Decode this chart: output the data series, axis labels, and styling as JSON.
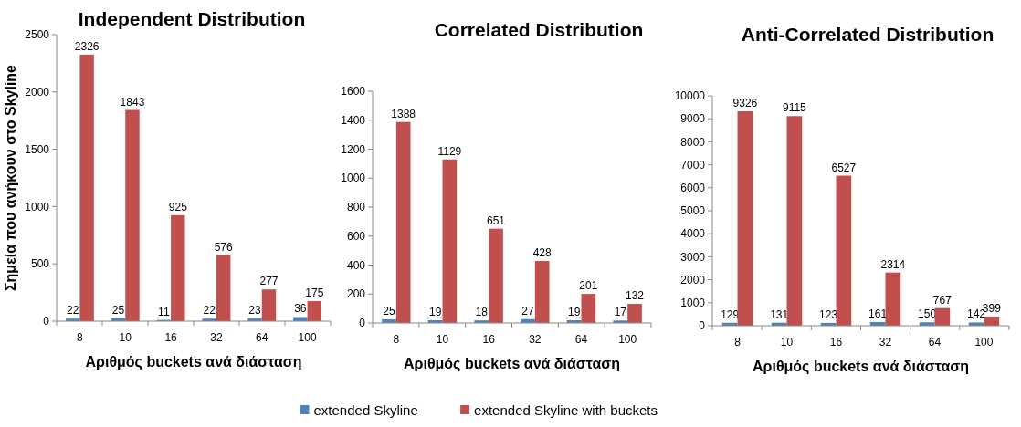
{
  "chart_data": [
    {
      "type": "bar",
      "title": "Independent Distribution",
      "xlabel": "Αριθμός buckets ανά διάσταση",
      "ylabel": "Σημεία που ανήκουν στο Skyline",
      "categories": [
        "8",
        "10",
        "16",
        "32",
        "64",
        "100"
      ],
      "series": [
        {
          "name": "extended Skyline",
          "color": "#4f81bd",
          "values": [
            22,
            25,
            11,
            22,
            23,
            36
          ]
        },
        {
          "name": "extended Skyline with buckets",
          "color": "#c0504d",
          "values": [
            2326,
            1843,
            925,
            576,
            277,
            175
          ]
        }
      ],
      "ylim": [
        0,
        2500
      ],
      "yticks": [
        0,
        500,
        1000,
        1500,
        2000,
        2500
      ],
      "grid": false,
      "data_labels": true,
      "legend": "bottom"
    },
    {
      "type": "bar",
      "title": "Correlated Distribution",
      "xlabel": "Αριθμός buckets ανά διάσταση",
      "categories": [
        "8",
        "10",
        "16",
        "32",
        "64",
        "100"
      ],
      "series": [
        {
          "color": "#4f81bd",
          "values": [
            25,
            19,
            18,
            27,
            19,
            17
          ]
        },
        {
          "color": "#c0504d",
          "values": [
            1388,
            1129,
            651,
            428,
            201,
            132
          ]
        }
      ],
      "ylim": [
        0,
        1600
      ],
      "yticks": [
        0,
        200,
        400,
        600,
        800,
        1000,
        1200,
        1400,
        1600
      ],
      "grid": false,
      "data_labels": true
    },
    {
      "type": "bar",
      "title": "Anti-Correlated Distribution",
      "xlabel": "Αριθμός buckets ανά διάσταση",
      "categories": [
        "8",
        "10",
        "16",
        "32",
        "64",
        "100"
      ],
      "series": [
        {
          "color": "#4f81bd",
          "values": [
            129,
            131,
            123,
            161,
            150,
            142
          ]
        },
        {
          "color": "#c0504d",
          "values": [
            9326,
            9115,
            6527,
            2314,
            767,
            399
          ]
        }
      ],
      "ylim": [
        0,
        10000
      ],
      "yticks": [
        0,
        1000,
        2000,
        3000,
        4000,
        5000,
        6000,
        7000,
        8000,
        9000,
        10000
      ],
      "grid": false,
      "data_labels": true
    }
  ]
}
